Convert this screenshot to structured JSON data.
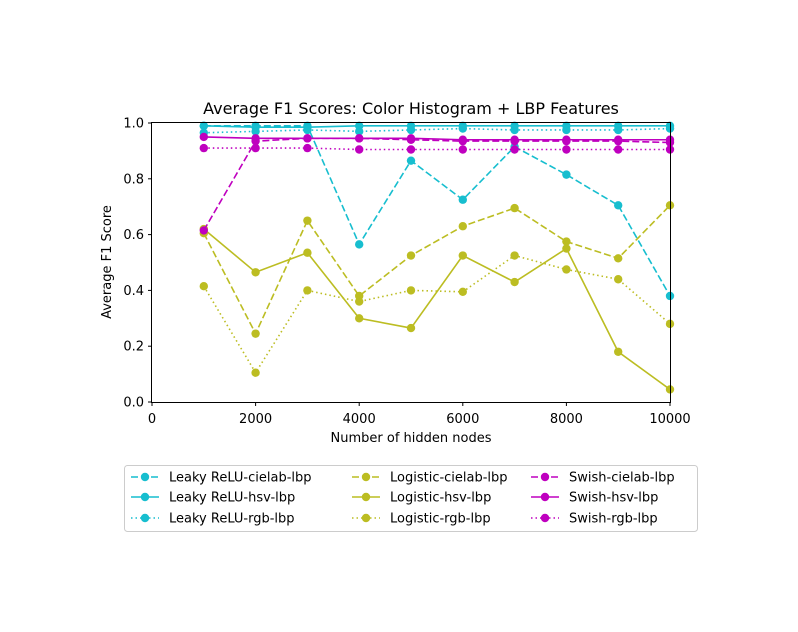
{
  "chart_data": {
    "type": "line",
    "title": "Average F1 Scores: Color Histogram + LBP Features",
    "xlabel": "Number of hidden nodes",
    "ylabel": "Average F1 Score",
    "xlim": [
      0,
      10000
    ],
    "ylim": [
      0,
      1.0
    ],
    "x_ticks": [
      "0",
      "2000",
      "4000",
      "6000",
      "8000",
      "10000"
    ],
    "y_ticks": [
      "0.0",
      "0.2",
      "0.4",
      "0.6",
      "0.8",
      "1.0"
    ],
    "x": [
      1000,
      2000,
      3000,
      4000,
      5000,
      6000,
      7000,
      8000,
      9000,
      10000
    ],
    "legend_position": "below",
    "series": [
      {
        "name": "Leaky ReLU-cielab-lbp",
        "color": "#17BECF",
        "style": "dashed",
        "values": [
          0.99,
          0.99,
          0.99,
          0.565,
          0.865,
          0.725,
          0.915,
          0.815,
          0.705,
          0.38
        ]
      },
      {
        "name": "Leaky ReLU-hsv-lbp",
        "color": "#17BECF",
        "style": "solid",
        "values": [
          0.99,
          0.985,
          0.985,
          0.99,
          0.99,
          0.99,
          0.99,
          0.99,
          0.99,
          0.99
        ]
      },
      {
        "name": "Leaky ReLU-rgb-lbp",
        "color": "#17BECF",
        "style": "dotted",
        "values": [
          0.965,
          0.97,
          0.975,
          0.97,
          0.975,
          0.98,
          0.975,
          0.975,
          0.975,
          0.98
        ]
      },
      {
        "name": "Logistic-cielab-lbp",
        "color": "#BCBD22",
        "style": "dashed",
        "values": [
          0.605,
          0.245,
          0.65,
          0.38,
          0.525,
          0.63,
          0.695,
          0.575,
          0.515,
          0.705
        ]
      },
      {
        "name": "Logistic-hsv-lbp",
        "color": "#BCBD22",
        "style": "solid",
        "values": [
          0.62,
          0.465,
          0.535,
          0.3,
          0.265,
          0.525,
          0.43,
          0.55,
          0.18,
          0.045
        ]
      },
      {
        "name": "Logistic-rgb-lbp",
        "color": "#BCBD22",
        "style": "dotted",
        "values": [
          0.415,
          0.105,
          0.4,
          0.36,
          0.4,
          0.395,
          0.525,
          0.475,
          0.44,
          0.28
        ]
      },
      {
        "name": "Swish-cielab-lbp",
        "color": "#BF00BF",
        "style": "dashed",
        "values": [
          0.615,
          0.935,
          0.945,
          0.945,
          0.94,
          0.935,
          0.935,
          0.935,
          0.935,
          0.93
        ]
      },
      {
        "name": "Swish-hsv-lbp",
        "color": "#BF00BF",
        "style": "solid",
        "values": [
          0.95,
          0.945,
          0.945,
          0.945,
          0.945,
          0.94,
          0.94,
          0.94,
          0.94,
          0.94
        ]
      },
      {
        "name": "Swish-rgb-lbp",
        "color": "#BF00BF",
        "style": "dotted",
        "values": [
          0.91,
          0.91,
          0.91,
          0.905,
          0.905,
          0.905,
          0.905,
          0.905,
          0.905,
          0.905
        ]
      }
    ]
  }
}
